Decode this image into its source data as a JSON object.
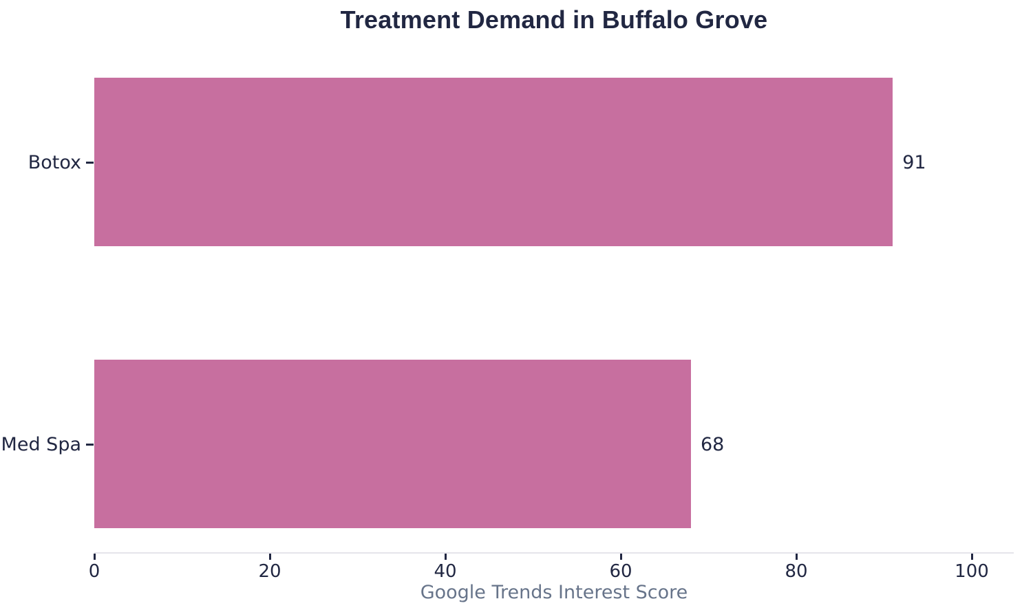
{
  "chart_data": {
    "type": "bar",
    "orientation": "horizontal",
    "title": "Treatment Demand in Buffalo Grove",
    "categories": [
      "Botox",
      "Med Spa"
    ],
    "values": [
      91,
      68
    ],
    "value_labels": [
      "91",
      "68"
    ],
    "xlabel": "Google Trends Interest Score",
    "ylabel": "",
    "xticks": [
      0,
      20,
      40,
      60,
      80,
      100
    ],
    "xtick_labels": [
      "0",
      "20",
      "40",
      "60",
      "80",
      "100"
    ],
    "xlim": [
      0,
      104.8
    ],
    "grid": false,
    "legend": "none",
    "colors": {
      "bar": "#c76f9f",
      "dark_text": "#212742",
      "axis_label_text": "#67748a",
      "spine": "#e5e4ea",
      "background": "#ffffff"
    }
  }
}
